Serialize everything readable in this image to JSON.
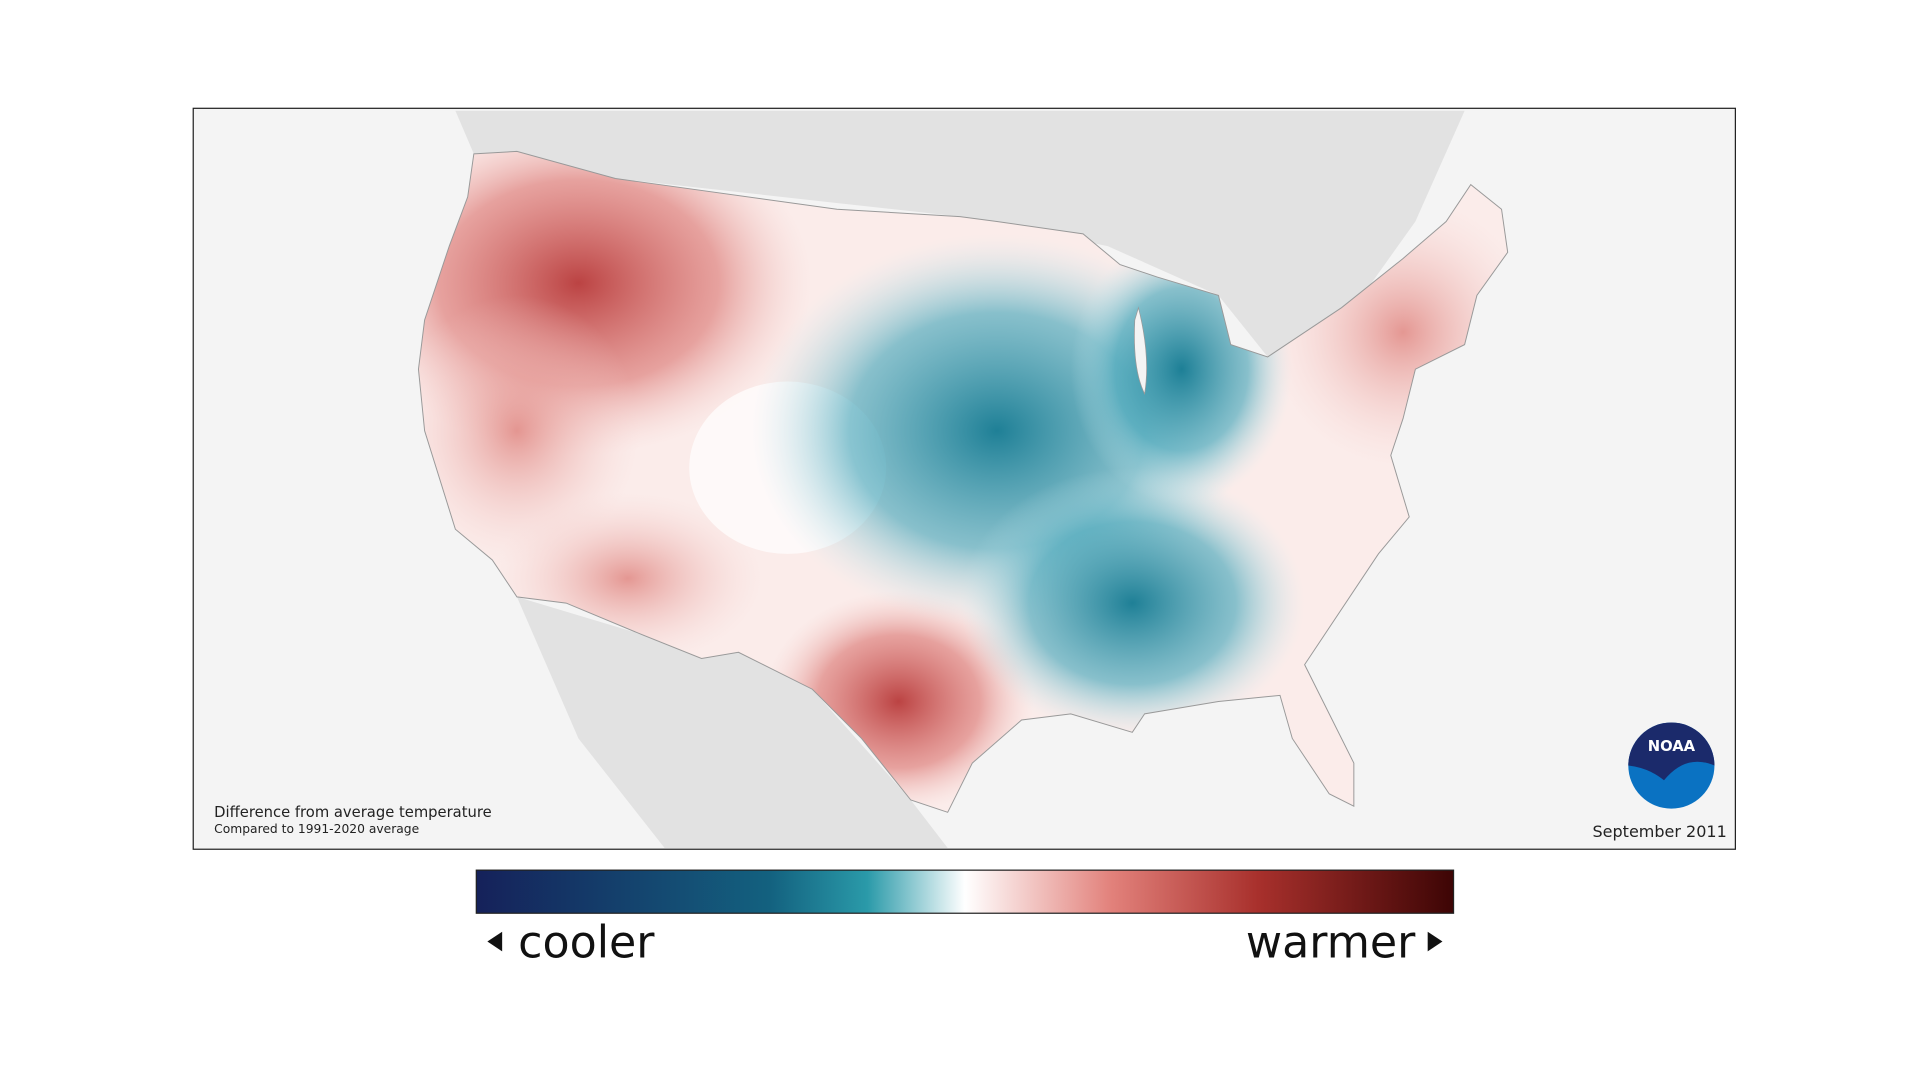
{
  "map": {
    "caption": {
      "title": "Difference from average temperature",
      "subtitle": "Compared to 1991-2020 average"
    },
    "date": "September 2011",
    "logo": "NOAA",
    "legend": {
      "low": "cooler",
      "high": "warmer"
    }
  }
}
